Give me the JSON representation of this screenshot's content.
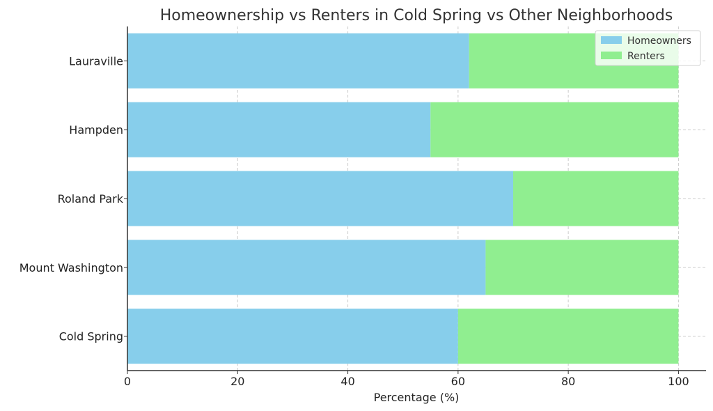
{
  "chart_data": {
    "type": "bar",
    "orientation": "horizontal",
    "stacked": true,
    "title": "Homeownership vs Renters in Cold Spring vs Other Neighborhoods",
    "xlabel": "Percentage (%)",
    "ylabel": "",
    "xlim": [
      0,
      105
    ],
    "xticks": [
      0,
      20,
      40,
      60,
      80,
      100
    ],
    "grid": true,
    "legend_position": "top-right",
    "categories": [
      "Cold Spring",
      "Mount Washington",
      "Roland Park",
      "Hampden",
      "Lauraville"
    ],
    "series": [
      {
        "name": "Homeowners",
        "color": "#87ceeb",
        "values": [
          60,
          65,
          70,
          55,
          62
        ]
      },
      {
        "name": "Renters",
        "color": "#90ee90",
        "values": [
          40,
          35,
          30,
          45,
          38
        ]
      }
    ]
  }
}
